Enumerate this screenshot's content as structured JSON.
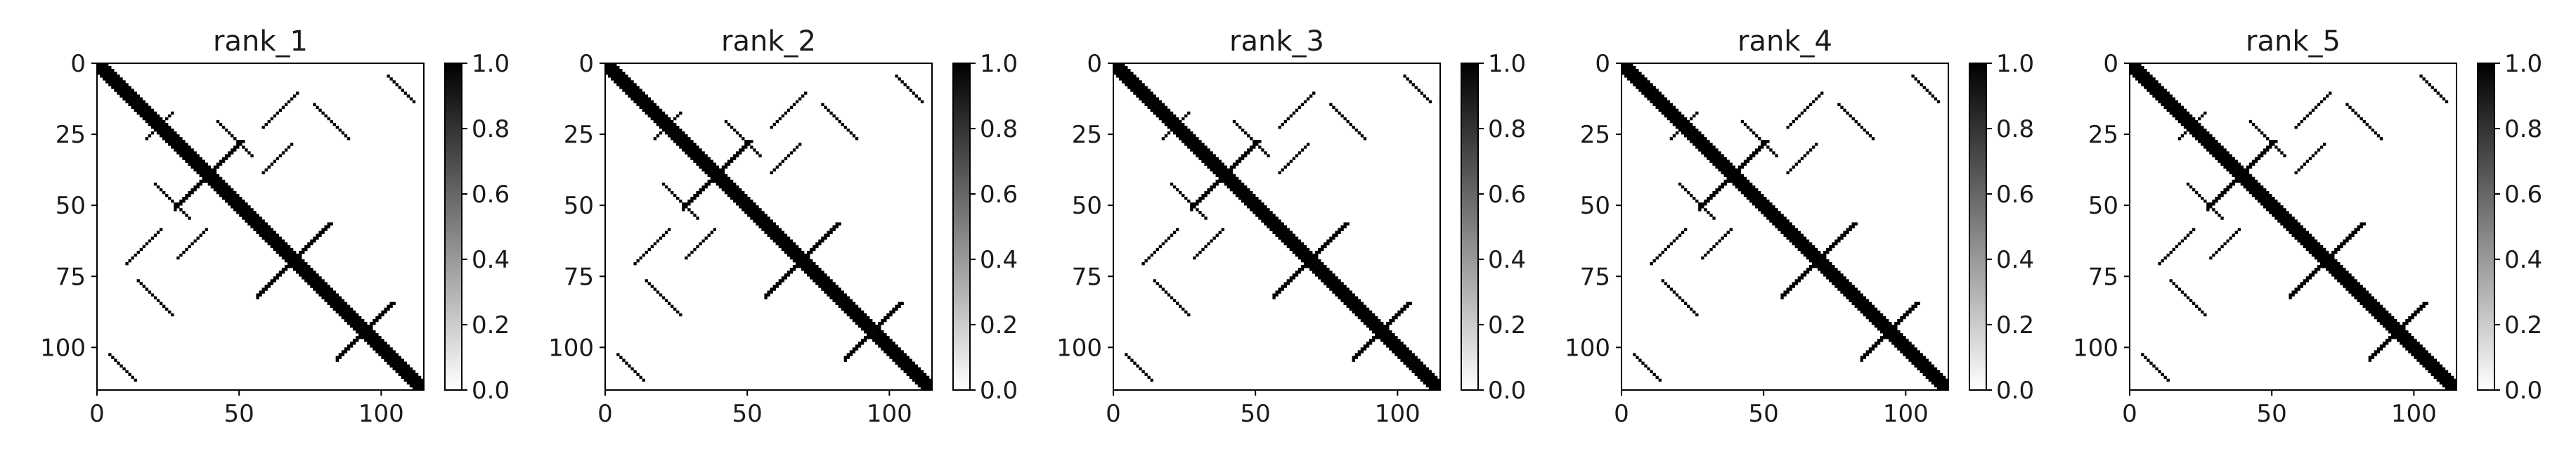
{
  "figure": {
    "background": "#ffffff"
  },
  "colorbar_ticks": [
    "1.0",
    "0.8",
    "0.6",
    "0.4",
    "0.2",
    "0.0"
  ],
  "x_ticks": [
    "0",
    "50",
    "100"
  ],
  "y_ticks": [
    "0",
    "25",
    "50",
    "75",
    "100"
  ],
  "colormap": {
    "name": "gray_r",
    "low": "#ffffff",
    "high": "#000000"
  },
  "chart_data": [
    {
      "type": "heatmap",
      "title": "rank_1",
      "matrix_size": 115,
      "xlim": [
        0,
        115
      ],
      "ylim": [
        115,
        0
      ],
      "clim": [
        0,
        1
      ],
      "colorbar": true,
      "grid": false,
      "description": "Binary contact map: thick main diagonal, anti-diagonal hairpin segments crossing it, and parallel off-diagonal strand pairings.",
      "segments": [
        {
          "kind": "diagonal",
          "from": [
            0,
            0
          ],
          "to": [
            115,
            115
          ],
          "width": 3
        },
        {
          "kind": "anti",
          "from": [
            27,
            50
          ],
          "to": [
            50,
            27
          ],
          "width": 2
        },
        {
          "kind": "anti",
          "from": [
            56,
            81
          ],
          "to": [
            81,
            56
          ],
          "width": 2
        },
        {
          "kind": "anti",
          "from": [
            84,
            103
          ],
          "to": [
            103,
            84
          ],
          "width": 2
        },
        {
          "kind": "anti",
          "from": [
            17,
            26
          ],
          "to": [
            26,
            17
          ],
          "width": 1
        },
        {
          "kind": "parallel",
          "from": [
            20,
            42
          ],
          "to": [
            32,
            54
          ],
          "width": 1
        },
        {
          "kind": "parallel",
          "from": [
            42,
            20
          ],
          "to": [
            54,
            32
          ],
          "width": 1
        },
        {
          "kind": "parallel",
          "from": [
            14,
            76
          ],
          "to": [
            26,
            88
          ],
          "width": 1
        },
        {
          "kind": "parallel",
          "from": [
            76,
            14
          ],
          "to": [
            88,
            26
          ],
          "width": 1
        },
        {
          "kind": "parallel",
          "from": [
            4,
            102
          ],
          "to": [
            13,
            111
          ],
          "width": 1
        },
        {
          "kind": "parallel",
          "from": [
            102,
            4
          ],
          "to": [
            111,
            13
          ],
          "width": 1
        },
        {
          "kind": "anti",
          "from": [
            10,
            70
          ],
          "to": [
            22,
            58
          ],
          "width": 1
        },
        {
          "kind": "anti",
          "from": [
            58,
            22
          ],
          "to": [
            70,
            10
          ],
          "width": 1
        },
        {
          "kind": "anti",
          "from": [
            28,
            68
          ],
          "to": [
            38,
            58
          ],
          "width": 1
        },
        {
          "kind": "anti",
          "from": [
            58,
            38
          ],
          "to": [
            68,
            28
          ],
          "width": 1
        }
      ]
    },
    {
      "type": "heatmap",
      "title": "rank_2",
      "matrix_size": 115,
      "xlim": [
        0,
        115
      ],
      "ylim": [
        115,
        0
      ],
      "clim": [
        0,
        1
      ],
      "colorbar": true,
      "grid": false,
      "description": "Binary contact map: thick main diagonal, anti-diagonal hairpin segments crossing it, and parallel off-diagonal strand pairings.",
      "segments": [
        {
          "kind": "diagonal",
          "from": [
            0,
            0
          ],
          "to": [
            115,
            115
          ],
          "width": 3
        },
        {
          "kind": "anti",
          "from": [
            27,
            50
          ],
          "to": [
            50,
            27
          ],
          "width": 2
        },
        {
          "kind": "anti",
          "from": [
            56,
            81
          ],
          "to": [
            81,
            56
          ],
          "width": 2
        },
        {
          "kind": "anti",
          "from": [
            84,
            103
          ],
          "to": [
            103,
            84
          ],
          "width": 2
        },
        {
          "kind": "anti",
          "from": [
            17,
            26
          ],
          "to": [
            26,
            17
          ],
          "width": 1
        },
        {
          "kind": "parallel",
          "from": [
            20,
            42
          ],
          "to": [
            32,
            54
          ],
          "width": 1
        },
        {
          "kind": "parallel",
          "from": [
            42,
            20
          ],
          "to": [
            54,
            32
          ],
          "width": 1
        },
        {
          "kind": "parallel",
          "from": [
            14,
            76
          ],
          "to": [
            26,
            88
          ],
          "width": 1
        },
        {
          "kind": "parallel",
          "from": [
            76,
            14
          ],
          "to": [
            88,
            26
          ],
          "width": 1
        },
        {
          "kind": "parallel",
          "from": [
            4,
            102
          ],
          "to": [
            13,
            111
          ],
          "width": 1
        },
        {
          "kind": "parallel",
          "from": [
            102,
            4
          ],
          "to": [
            111,
            13
          ],
          "width": 1
        },
        {
          "kind": "anti",
          "from": [
            10,
            70
          ],
          "to": [
            22,
            58
          ],
          "width": 1
        },
        {
          "kind": "anti",
          "from": [
            58,
            22
          ],
          "to": [
            70,
            10
          ],
          "width": 1
        },
        {
          "kind": "anti",
          "from": [
            28,
            68
          ],
          "to": [
            38,
            58
          ],
          "width": 1
        },
        {
          "kind": "anti",
          "from": [
            58,
            38
          ],
          "to": [
            68,
            28
          ],
          "width": 1
        }
      ]
    },
    {
      "type": "heatmap",
      "title": "rank_3",
      "matrix_size": 115,
      "xlim": [
        0,
        115
      ],
      "ylim": [
        115,
        0
      ],
      "clim": [
        0,
        1
      ],
      "colorbar": true,
      "grid": false,
      "description": "Binary contact map: thick main diagonal, anti-diagonal hairpin segments crossing it, and parallel off-diagonal strand pairings.",
      "segments": [
        {
          "kind": "diagonal",
          "from": [
            0,
            0
          ],
          "to": [
            115,
            115
          ],
          "width": 3
        },
        {
          "kind": "anti",
          "from": [
            27,
            50
          ],
          "to": [
            50,
            27
          ],
          "width": 2
        },
        {
          "kind": "anti",
          "from": [
            56,
            81
          ],
          "to": [
            81,
            56
          ],
          "width": 2
        },
        {
          "kind": "anti",
          "from": [
            84,
            103
          ],
          "to": [
            103,
            84
          ],
          "width": 2
        },
        {
          "kind": "anti",
          "from": [
            17,
            26
          ],
          "to": [
            26,
            17
          ],
          "width": 1
        },
        {
          "kind": "parallel",
          "from": [
            20,
            42
          ],
          "to": [
            32,
            54
          ],
          "width": 1
        },
        {
          "kind": "parallel",
          "from": [
            42,
            20
          ],
          "to": [
            54,
            32
          ],
          "width": 1
        },
        {
          "kind": "parallel",
          "from": [
            14,
            76
          ],
          "to": [
            26,
            88
          ],
          "width": 1
        },
        {
          "kind": "parallel",
          "from": [
            76,
            14
          ],
          "to": [
            88,
            26
          ],
          "width": 1
        },
        {
          "kind": "parallel",
          "from": [
            4,
            102
          ],
          "to": [
            13,
            111
          ],
          "width": 1
        },
        {
          "kind": "parallel",
          "from": [
            102,
            4
          ],
          "to": [
            111,
            13
          ],
          "width": 1
        },
        {
          "kind": "anti",
          "from": [
            10,
            70
          ],
          "to": [
            22,
            58
          ],
          "width": 1
        },
        {
          "kind": "anti",
          "from": [
            58,
            22
          ],
          "to": [
            70,
            10
          ],
          "width": 1
        },
        {
          "kind": "anti",
          "from": [
            28,
            68
          ],
          "to": [
            38,
            58
          ],
          "width": 1
        },
        {
          "kind": "anti",
          "from": [
            58,
            38
          ],
          "to": [
            68,
            28
          ],
          "width": 1
        }
      ]
    },
    {
      "type": "heatmap",
      "title": "rank_4",
      "matrix_size": 115,
      "xlim": [
        0,
        115
      ],
      "ylim": [
        115,
        0
      ],
      "clim": [
        0,
        1
      ],
      "colorbar": true,
      "grid": false,
      "description": "Binary contact map: thick main diagonal, anti-diagonal hairpin segments crossing it, and parallel off-diagonal strand pairings.",
      "segments": [
        {
          "kind": "diagonal",
          "from": [
            0,
            0
          ],
          "to": [
            115,
            115
          ],
          "width": 3
        },
        {
          "kind": "anti",
          "from": [
            27,
            50
          ],
          "to": [
            50,
            27
          ],
          "width": 2
        },
        {
          "kind": "anti",
          "from": [
            56,
            81
          ],
          "to": [
            81,
            56
          ],
          "width": 2
        },
        {
          "kind": "anti",
          "from": [
            84,
            103
          ],
          "to": [
            103,
            84
          ],
          "width": 2
        },
        {
          "kind": "anti",
          "from": [
            17,
            26
          ],
          "to": [
            26,
            17
          ],
          "width": 1
        },
        {
          "kind": "parallel",
          "from": [
            20,
            42
          ],
          "to": [
            32,
            54
          ],
          "width": 1
        },
        {
          "kind": "parallel",
          "from": [
            42,
            20
          ],
          "to": [
            54,
            32
          ],
          "width": 1
        },
        {
          "kind": "parallel",
          "from": [
            14,
            76
          ],
          "to": [
            26,
            88
          ],
          "width": 1
        },
        {
          "kind": "parallel",
          "from": [
            76,
            14
          ],
          "to": [
            88,
            26
          ],
          "width": 1
        },
        {
          "kind": "parallel",
          "from": [
            4,
            102
          ],
          "to": [
            13,
            111
          ],
          "width": 1
        },
        {
          "kind": "parallel",
          "from": [
            102,
            4
          ],
          "to": [
            111,
            13
          ],
          "width": 1
        },
        {
          "kind": "anti",
          "from": [
            10,
            70
          ],
          "to": [
            22,
            58
          ],
          "width": 1
        },
        {
          "kind": "anti",
          "from": [
            58,
            22
          ],
          "to": [
            70,
            10
          ],
          "width": 1
        },
        {
          "kind": "anti",
          "from": [
            28,
            68
          ],
          "to": [
            38,
            58
          ],
          "width": 1
        },
        {
          "kind": "anti",
          "from": [
            58,
            38
          ],
          "to": [
            68,
            28
          ],
          "width": 1
        }
      ]
    },
    {
      "type": "heatmap",
      "title": "rank_5",
      "matrix_size": 115,
      "xlim": [
        0,
        115
      ],
      "ylim": [
        115,
        0
      ],
      "clim": [
        0,
        1
      ],
      "colorbar": true,
      "grid": false,
      "description": "Binary contact map: thick main diagonal, anti-diagonal hairpin segments crossing it, and parallel off-diagonal strand pairings.",
      "segments": [
        {
          "kind": "diagonal",
          "from": [
            0,
            0
          ],
          "to": [
            115,
            115
          ],
          "width": 3
        },
        {
          "kind": "anti",
          "from": [
            27,
            50
          ],
          "to": [
            50,
            27
          ],
          "width": 2
        },
        {
          "kind": "anti",
          "from": [
            56,
            81
          ],
          "to": [
            81,
            56
          ],
          "width": 2
        },
        {
          "kind": "anti",
          "from": [
            84,
            103
          ],
          "to": [
            103,
            84
          ],
          "width": 2
        },
        {
          "kind": "anti",
          "from": [
            17,
            26
          ],
          "to": [
            26,
            17
          ],
          "width": 1
        },
        {
          "kind": "parallel",
          "from": [
            20,
            42
          ],
          "to": [
            32,
            54
          ],
          "width": 1
        },
        {
          "kind": "parallel",
          "from": [
            42,
            20
          ],
          "to": [
            54,
            32
          ],
          "width": 1
        },
        {
          "kind": "parallel",
          "from": [
            14,
            76
          ],
          "to": [
            26,
            88
          ],
          "width": 1
        },
        {
          "kind": "parallel",
          "from": [
            76,
            14
          ],
          "to": [
            88,
            26
          ],
          "width": 1
        },
        {
          "kind": "parallel",
          "from": [
            4,
            102
          ],
          "to": [
            13,
            111
          ],
          "width": 1
        },
        {
          "kind": "parallel",
          "from": [
            102,
            4
          ],
          "to": [
            111,
            13
          ],
          "width": 1
        },
        {
          "kind": "anti",
          "from": [
            10,
            70
          ],
          "to": [
            22,
            58
          ],
          "width": 1
        },
        {
          "kind": "anti",
          "from": [
            58,
            22
          ],
          "to": [
            70,
            10
          ],
          "width": 1
        },
        {
          "kind": "anti",
          "from": [
            28,
            68
          ],
          "to": [
            38,
            58
          ],
          "width": 1
        },
        {
          "kind": "anti",
          "from": [
            58,
            38
          ],
          "to": [
            68,
            28
          ],
          "width": 1
        }
      ]
    }
  ]
}
